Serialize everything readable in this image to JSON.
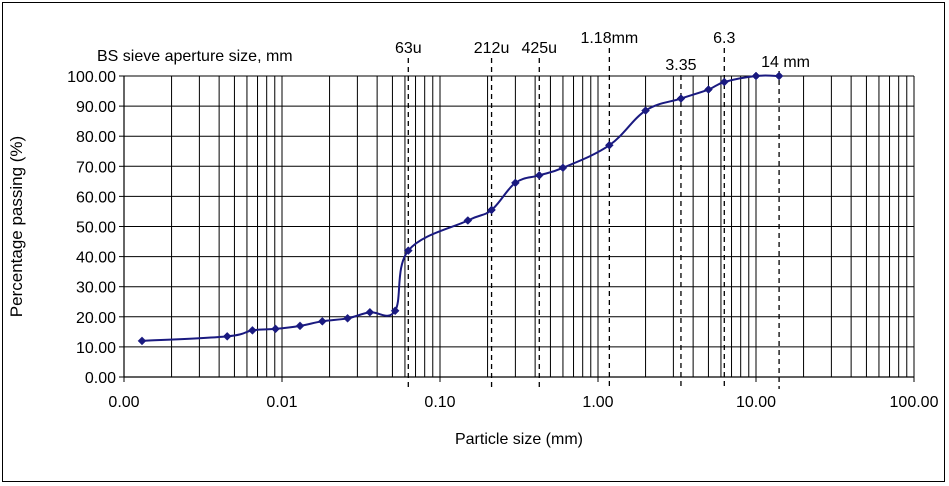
{
  "chart_data": {
    "type": "scatter",
    "title": "",
    "xlabel": "Particle size (mm)",
    "ylabel": "Percentage passing (%)",
    "x_scale": "log",
    "xlim": [
      0.001,
      100
    ],
    "ylim": [
      0,
      100
    ],
    "x_tick_labels": [
      "0.00",
      "0.01",
      "0.10",
      "1.00",
      "10.00",
      "100.00"
    ],
    "y_tick_labels": [
      "0.00",
      "10.00",
      "20.00",
      "30.00",
      "40.00",
      "50.00",
      "60.00",
      "70.00",
      "80.00",
      "90.00",
      "100.00"
    ],
    "grid": "vertical log grid",
    "sieve_header": "BS sieve aperture size, mm",
    "sieves": [
      {
        "label": "63u",
        "x": 0.063
      },
      {
        "label": "212u",
        "x": 0.212
      },
      {
        "label": "425u",
        "x": 0.425
      },
      {
        "label": "1.18mm",
        "x": 1.18
      },
      {
        "label": "3.35",
        "x": 3.35
      },
      {
        "label": "6.3",
        "x": 6.3
      },
      {
        "label": "14 mm",
        "x": 14
      }
    ],
    "series": [
      {
        "color": "#1a1a80",
        "x": [
          0.0013,
          0.0045,
          0.0065,
          0.0091,
          0.013,
          0.018,
          0.026,
          0.036,
          0.052,
          0.063,
          0.15,
          0.212,
          0.3,
          0.425,
          0.6,
          1.18,
          2.0,
          3.35,
          5.0,
          6.3,
          10,
          14
        ],
        "y": [
          12.0,
          13.5,
          15.5,
          16.0,
          17.0,
          18.5,
          19.5,
          21.5,
          22.0,
          42.0,
          52.0,
          55.5,
          64.5,
          67.0,
          69.5,
          77.0,
          88.5,
          92.5,
          95.5,
          98.0,
          100.0,
          100.0
        ]
      }
    ]
  }
}
